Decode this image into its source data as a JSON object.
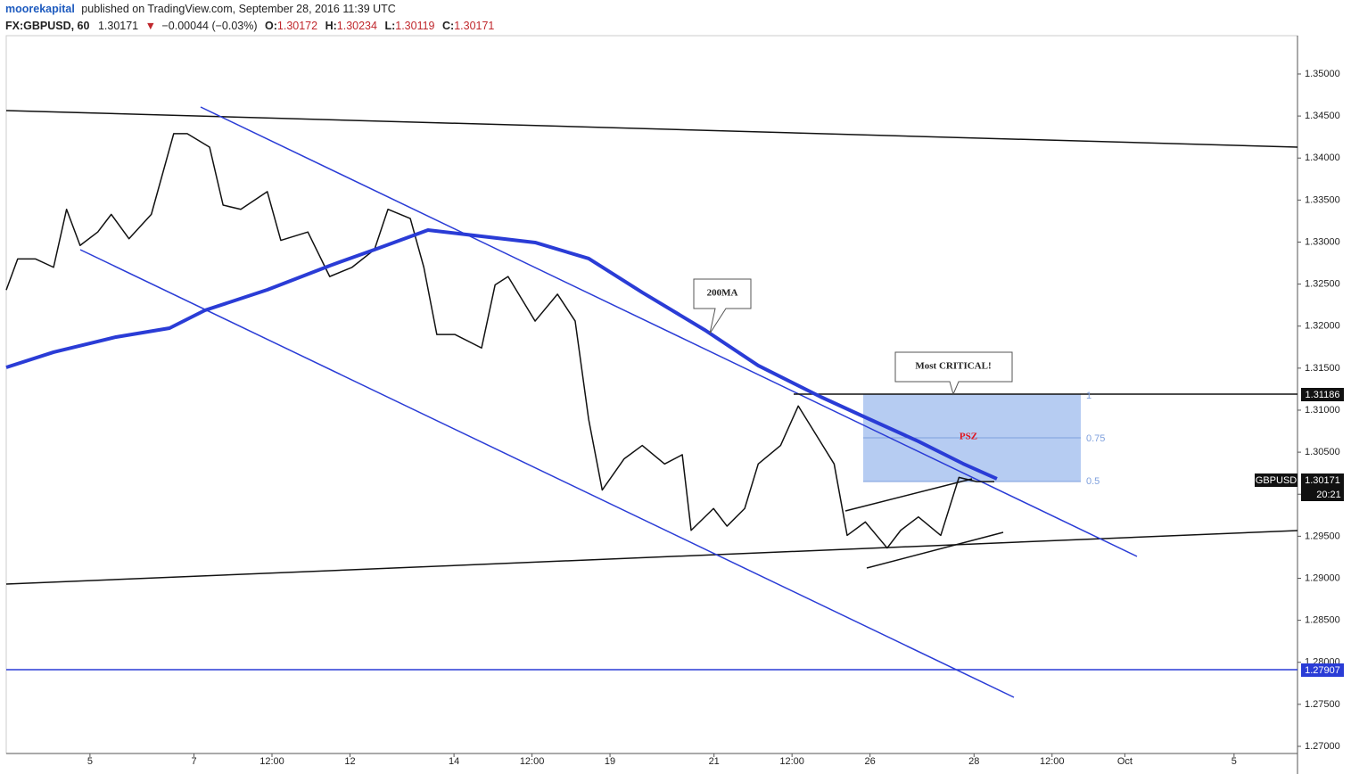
{
  "header": {
    "publisher": "moorekapital",
    "published": "published on TradingView.com, September 28, 2016 11:39 UTC",
    "symbol": "FX:GBPUSD, 60",
    "last": "1.30171",
    "arrow": "▼",
    "change": "−0.00044 (−0.03%)",
    "o_label": "O:",
    "o": "1.30172",
    "h_label": "H:",
    "h": "1.30234",
    "l_label": "L:",
    "l": "1.30119",
    "c_label": "C:",
    "c": "1.30171"
  },
  "annotations": {
    "ma": "200MA",
    "critical": "Most CRITICAL!",
    "zone": "PSZ",
    "fib_1": "1",
    "fib_075": "0.75",
    "fib_05": "0.5",
    "level_top": "1.31186",
    "ticker": "GBPUSD",
    "price": "1.30171",
    "countdown": "20:21",
    "level_bottom": "1.27907"
  },
  "chart_data": {
    "type": "line",
    "xlim": [
      -1.61,
      23.22
    ],
    "ylim": [
      1.26915,
      1.35456
    ],
    "xticks": [
      {
        "value": 0,
        "label": "5"
      },
      {
        "value": 2,
        "label": "7"
      },
      {
        "value": 3.5,
        "label": "12:00"
      },
      {
        "value": 5,
        "label": "12"
      },
      {
        "value": 7,
        "label": "14"
      },
      {
        "value": 8.5,
        "label": "12:00"
      },
      {
        "value": 10,
        "label": "19"
      },
      {
        "value": 12,
        "label": "21"
      },
      {
        "value": 13.5,
        "label": "12:00"
      },
      {
        "value": 15,
        "label": "26"
      },
      {
        "value": 17,
        "label": "28"
      },
      {
        "value": 18.5,
        "label": "12:00"
      },
      {
        "value": 19.9,
        "label": "Oct"
      },
      {
        "value": 22,
        "label": "5"
      }
    ],
    "yticks": [
      {
        "value": 1.35,
        "label": "1.35000"
      },
      {
        "value": 1.345,
        "label": "1.34500"
      },
      {
        "value": 1.34,
        "label": "1.34000"
      },
      {
        "value": 1.335,
        "label": "1.33500"
      },
      {
        "value": 1.33,
        "label": "1.33000"
      },
      {
        "value": 1.325,
        "label": "1.32500"
      },
      {
        "value": 1.32,
        "label": "1.32000"
      },
      {
        "value": 1.315,
        "label": "1.31500"
      },
      {
        "value": 1.31,
        "label": "1.31000"
      },
      {
        "value": 1.305,
        "label": "1.30500"
      },
      {
        "value": 1.3,
        "label": "1.30000"
      },
      {
        "value": 1.295,
        "label": "1.29500"
      },
      {
        "value": 1.29,
        "label": "1.29000"
      },
      {
        "value": 1.285,
        "label": "1.28500"
      },
      {
        "value": 1.28,
        "label": "1.28000"
      },
      {
        "value": 1.275,
        "label": "1.27500"
      },
      {
        "value": 1.27,
        "label": "1.27000"
      }
    ],
    "series": [
      {
        "color": "#111111",
        "x": [
          -1.61,
          -1.39,
          -1.05,
          -0.7,
          -0.45,
          -0.19,
          0.15,
          0.41,
          0.75,
          1.18,
          1.61,
          1.87,
          2.3,
          2.56,
          2.9,
          3.41,
          3.67,
          4.19,
          4.61,
          5.04,
          5.47,
          5.73,
          6.16,
          6.42,
          6.67,
          7.02,
          7.53,
          7.79,
          8.04,
          8.56,
          8.99,
          9.33,
          9.59,
          9.85,
          10.27,
          10.62,
          11.05,
          11.39,
          11.56,
          11.99,
          12.25,
          12.59,
          12.85,
          13.28,
          13.62,
          13.88,
          14.31,
          14.56,
          14.91,
          15.33,
          15.59,
          15.93,
          16.36,
          16.71,
          17.05,
          17.39
        ],
        "values": [
          1.3243,
          1.328,
          1.328,
          1.327,
          1.3339,
          1.3296,
          1.3312,
          1.3333,
          1.3304,
          1.3333,
          1.3429,
          1.3429,
          1.3413,
          1.3344,
          1.3339,
          1.336,
          1.3302,
          1.3312,
          1.3259,
          1.327,
          1.3291,
          1.3339,
          1.3328,
          1.327,
          1.319,
          1.319,
          1.3174,
          1.3249,
          1.3259,
          1.3206,
          1.3238,
          1.3206,
          1.3089,
          1.3005,
          1.3042,
          1.3058,
          1.3036,
          1.3047,
          1.2957,
          1.2983,
          1.2962,
          1.2983,
          1.3036,
          1.3058,
          1.3105,
          1.3079,
          1.3036,
          1.2951,
          1.2967,
          1.2936,
          1.2957,
          1.2973,
          1.2951,
          1.302,
          1.3015,
          1.3015
        ]
      },
      {
        "color": "#2a3cd6",
        "x": [
          -1.61,
          -0.7,
          0.5,
          1.53,
          2.21,
          3.41,
          4.61,
          5.47,
          6.5,
          7.53,
          8.56,
          9.59,
          10.62,
          11.82,
          12.85,
          14.05,
          14.91,
          15.93,
          16.79,
          17.44
        ],
        "values": [
          1.31509,
          1.3169,
          1.3187,
          1.31976,
          1.32188,
          1.32432,
          1.32719,
          1.3291,
          1.33143,
          1.33069,
          1.32995,
          1.32804,
          1.32401,
          1.31955,
          1.31531,
          1.31159,
          1.30915,
          1.30629,
          1.30363,
          1.30183
        ]
      }
    ]
  }
}
